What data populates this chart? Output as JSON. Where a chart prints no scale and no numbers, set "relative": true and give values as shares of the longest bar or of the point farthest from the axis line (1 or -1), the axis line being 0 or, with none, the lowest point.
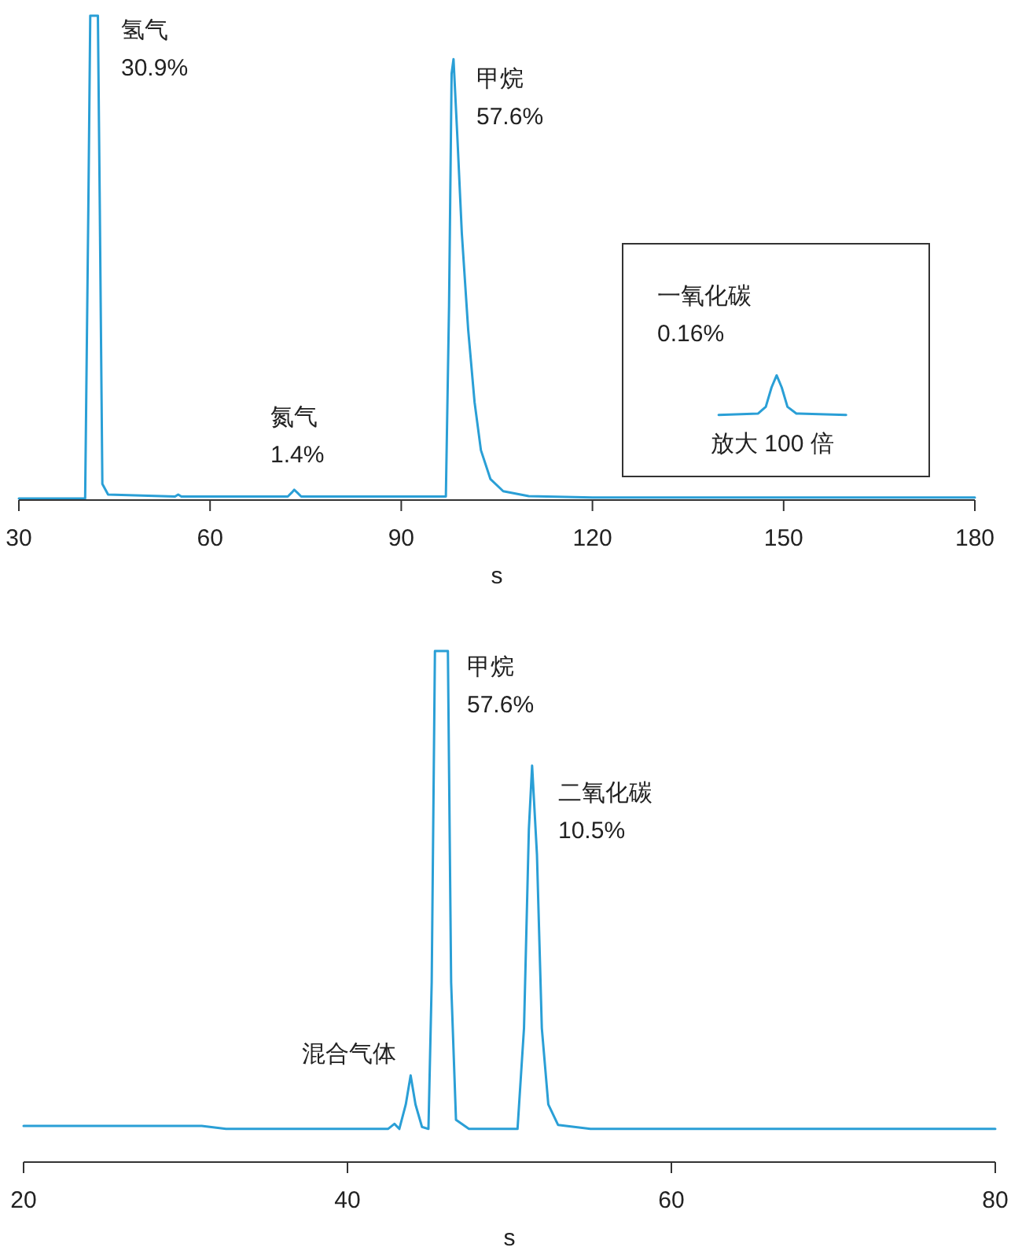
{
  "chart_data": [
    {
      "type": "line",
      "relative": true,
      "xlabel": "s",
      "xlim": [
        30,
        180
      ],
      "xticks": [
        30,
        60,
        90,
        120,
        150,
        180
      ],
      "series": [
        {
          "color": "#2a9fd6",
          "x": [
            30,
            40.4,
            40.9,
            41.2,
            42.4,
            42.7,
            43.1,
            44,
            54.5,
            55,
            55.5,
            72.2,
            72.8,
            73.2,
            73.7,
            74.3,
            97,
            97.5,
            97.9,
            98.2,
            98.8,
            99.5,
            100.5,
            101.5,
            102.5,
            104,
            106,
            110,
            120,
            180
          ],
          "values": [
            0,
            0,
            0.6,
            1,
            1,
            0.6,
            0.03,
            0.008,
            0.004,
            0.008,
            0.004,
            0.004,
            0.012,
            0.018,
            0.012,
            0.004,
            0.004,
            0.4,
            0.88,
            0.91,
            0.75,
            0.55,
            0.35,
            0.2,
            0.1,
            0.04,
            0.015,
            0.005,
            0.002,
            0.002
          ]
        },
        {
          "color": "#2a9fd6",
          "x": [
            139.8,
            146,
            147.2,
            148.1,
            148.9,
            149.7,
            150.6,
            152,
            159.8
          ],
          "values": [
            0.173,
            0.176,
            0.19,
            0.23,
            0.255,
            0.23,
            0.19,
            0.176,
            0.173
          ]
        }
      ],
      "annotations": [
        "氢气\n30.9%",
        "甲烷\n57.6%",
        "氮气\n1.4%",
        "一氧化碳\n0.16%",
        "放大 100 倍"
      ]
    },
    {
      "type": "line",
      "relative": true,
      "xlabel": "s",
      "xlim": [
        20,
        80
      ],
      "xticks": [
        20,
        40,
        60,
        80
      ],
      "series": [
        {
          "color": "#2a9fd6",
          "x": [
            20,
            31,
            32.5,
            42.5,
            42.9,
            43.2,
            43.6,
            43.9,
            44.2,
            44.6,
            45,
            45.2,
            45.4,
            46.2,
            46.4,
            46.7,
            47.5,
            50.5,
            50.9,
            51.2,
            51.4,
            51.7,
            52,
            52.4,
            53,
            55,
            80
          ],
          "values": [
            0.068,
            0.068,
            0.062,
            0.062,
            0.072,
            0.062,
            0.11,
            0.167,
            0.11,
            0.066,
            0.062,
            0.35,
            1,
            1,
            0.35,
            0.08,
            0.062,
            0.062,
            0.26,
            0.65,
            0.775,
            0.6,
            0.26,
            0.11,
            0.07,
            0.062,
            0.062
          ]
        }
      ],
      "annotations": [
        "甲烷\n57.6%",
        "二氧化碳\n10.5%",
        "混合气体"
      ]
    }
  ]
}
